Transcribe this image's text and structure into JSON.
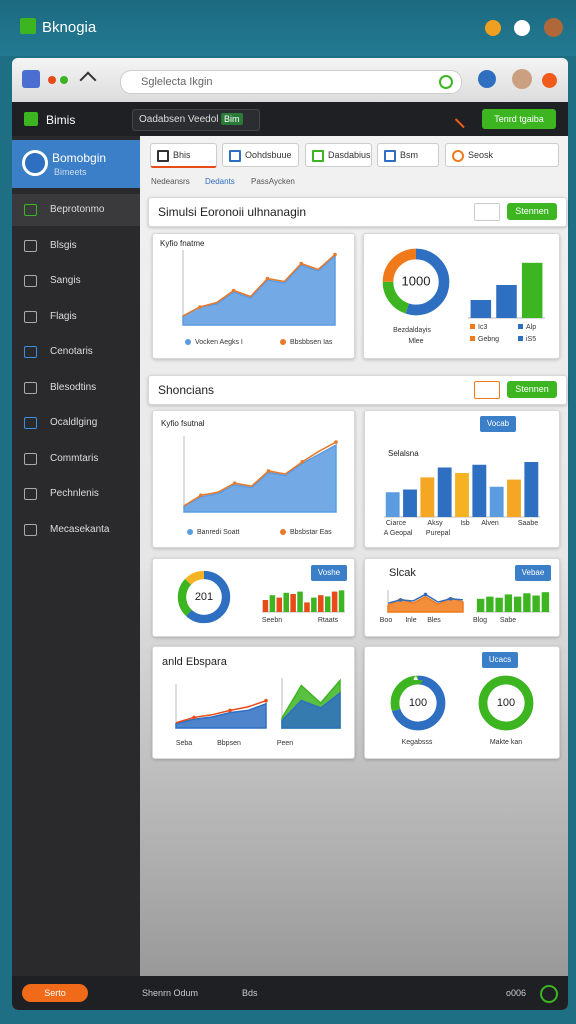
{
  "app": {
    "title": "Bknogia"
  },
  "browser": {
    "url": "Sglelecta Ikgin"
  },
  "topbar": {
    "brand": "Bimis",
    "dropdown": "Oadabsen Veedol",
    "badge": "Bim",
    "button": "Tenrd tgaiba"
  },
  "sidebar": {
    "profile": "Bomobgin",
    "profile_sub": "Bimeets",
    "items": [
      "Beprotonmo",
      "Blsgis",
      "Sangis",
      "Flagis",
      "Cenotaris",
      "Blesodtins",
      "Ocaldlging",
      "Commtaris",
      "Pechnlenis",
      "Mecasekanta"
    ]
  },
  "filters": [
    "Bhis",
    "Oohdsbuue",
    "Dasdabius",
    "Bsm",
    "Seosk"
  ],
  "tabs": [
    "Nedeansrs",
    "Dedants",
    "PassAycken"
  ],
  "section1": {
    "title": "Simulsi Eoronoii ulhnanagin",
    "button": "Stennen"
  },
  "section2": {
    "title": "Shoncians",
    "button": "Stennen"
  },
  "widgets": [
    {
      "title": "Kyfio fnatme",
      "parts": [
        {
          "type": "area",
          "ylim": [
            0,
            50
          ],
          "series": [
            {
              "name": "Vocken Aegks I",
              "color": "#5b9be0",
              "fill": true,
              "values": [
                6,
                12,
                14,
                22,
                18,
                30,
                28,
                40,
                36,
                46
              ]
            },
            {
              "name": "Bbsbbsen Ias",
              "color": "#e8792a",
              "values": [
                6,
                12,
                15,
                23,
                19,
                31,
                29,
                41,
                37,
                47
              ]
            }
          ]
        }
      ]
    },
    {
      "texts": [
        "Bezdaldayis",
        "Mlee"
      ],
      "legend": [
        "Ic3",
        "Alp",
        "Gebng",
        "iS5"
      ],
      "parts": [
        {
          "type": "donut",
          "center": 1000,
          "values": [
            55,
            20,
            25
          ],
          "colors": [
            "#2f6fc2",
            "#3cb521",
            "#f07a1a"
          ]
        },
        {
          "type": "bars",
          "ylim": [
            0,
            100
          ],
          "values": [
            30,
            55,
            92
          ],
          "colors": [
            "#2f6fc2",
            "#2f6fc2",
            "#3cb521"
          ]
        }
      ]
    },
    {
      "title": "Kyfio fsutnal",
      "parts": [
        {
          "type": "area",
          "ylim": [
            0,
            50
          ],
          "series": [
            {
              "name": "Banredi Soatt",
              "color": "#5b9be0",
              "fill": true,
              "values": [
                4,
                10,
                12,
                18,
                16,
                26,
                24,
                32,
                38,
                44
              ]
            },
            {
              "name": "Bbsbstar Eas",
              "color": "#e8792a",
              "values": [
                4,
                11,
                13,
                19,
                17,
                27,
                25,
                33,
                40,
                46
              ]
            }
          ]
        }
      ]
    },
    {
      "title": "Selalsna",
      "button": "Vocab",
      "texts": [
        "Ciarce",
        "Aksy",
        "Isb",
        "Alven",
        "Saabe",
        "A Geopal",
        "Purepal"
      ],
      "parts": [
        {
          "type": "bars",
          "ylim": [
            0,
            100
          ],
          "values": [
            45,
            50,
            72,
            90,
            80,
            95,
            55,
            68,
            100
          ],
          "colors": [
            "#5b9be0",
            "#2f6fc2",
            "#f5a623",
            "#2f6fc2",
            "#f5b324",
            "#2f6fc2",
            "#5b9be0",
            "#f5a623",
            "#2f6fc2"
          ]
        }
      ]
    },
    {
      "button": "Voshe",
      "texts": [
        "Seebn",
        "Rtaats"
      ],
      "parts": [
        {
          "type": "donut",
          "center": 201,
          "values": [
            62,
            25,
            13
          ],
          "colors": [
            "#2f6fc2",
            "#3cb521",
            "#f5b324"
          ]
        },
        {
          "type": "bars",
          "ylim": [
            0,
            100
          ],
          "values": [
            50,
            70,
            60,
            80,
            75,
            85,
            40,
            60,
            70,
            65,
            85,
            90
          ],
          "colors": [
            "#e84a1a",
            "#3cb521",
            "#e84a1a",
            "#3cb521",
            "#e84a1a",
            "#3cb521",
            "#e84a1a",
            "#3cb521",
            "#e84a1a",
            "#3cb521",
            "#e84a1a",
            "#3cb521"
          ]
        }
      ]
    },
    {
      "title": "Slcak",
      "button": "Vebae",
      "texts": [
        "Boo",
        "Inle",
        "Bles",
        "Blog",
        "Sabe"
      ],
      "parts": [
        {
          "type": "area",
          "ylim": [
            0,
            100
          ],
          "series": [
            {
              "color": "#f07a1a",
              "fill": true,
              "values": [
                30,
                60,
                40,
                70,
                35,
                65,
                45
              ]
            },
            {
              "color": "#2f6fc2",
              "values": [
                40,
                55,
                50,
                80,
                45,
                60,
                55
              ]
            }
          ]
        },
        {
          "type": "bars",
          "ylim": [
            0,
            100
          ],
          "values": [
            60,
            70,
            65,
            80,
            70,
            85,
            75,
            90
          ],
          "colors": [
            "#3cb521",
            "#3cb521",
            "#3cb521",
            "#3cb521",
            "#3cb521",
            "#3cb521",
            "#3cb521",
            "#3cb521"
          ]
        }
      ]
    },
    {
      "title": "anld Ebspara",
      "texts": [
        "Seba",
        "Bbpsen",
        "Peen"
      ],
      "parts": [
        {
          "type": "area",
          "ylim": [
            0,
            100
          ],
          "series": [
            {
              "color": "#2f6fc2",
              "fill": true,
              "values": [
                10,
                20,
                25,
                35,
                40,
                55
              ]
            },
            {
              "color": "#e84a1a",
              "values": [
                12,
                24,
                30,
                40,
                48,
                62
              ]
            }
          ]
        },
        {
          "type": "area",
          "ylim": [
            0,
            100
          ],
          "series": [
            {
              "color": "#3cb521",
              "fill": true,
              "values": [
                20,
                85,
                50,
                95
              ]
            },
            {
              "color": "#2f6fc2",
              "fill": true,
              "values": [
                15,
                55,
                40,
                70
              ]
            }
          ]
        }
      ]
    },
    {
      "button": "Ucacs",
      "texts": [
        "Kegabsss",
        "Makte kan"
      ],
      "parts": [
        {
          "type": "donut",
          "center": 100,
          "values": [
            70,
            30
          ],
          "colors": [
            "#2f6fc2",
            "#3cb521"
          ]
        },
        {
          "type": "donut",
          "center": 100,
          "values": [
            100
          ],
          "colors": [
            "#3cb521"
          ]
        }
      ]
    }
  ],
  "footer": {
    "button": "Serto",
    "item1": "Shenrn Odum",
    "item2": "Bds",
    "right": "o006"
  }
}
